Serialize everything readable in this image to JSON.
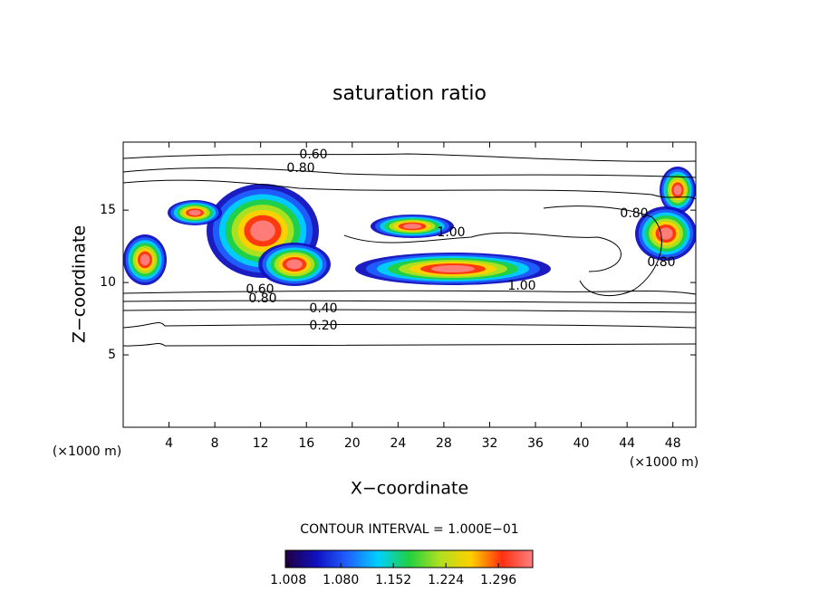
{
  "chart_data": {
    "type": "contour",
    "title": "saturation ratio",
    "x_label": "X−coordinate",
    "y_label": "Z−coordinate",
    "unit_labels": [
      "(×1000 m)",
      "(×1000 m)"
    ],
    "xlim": [
      0,
      50
    ],
    "xticks": [
      4,
      8,
      12,
      16,
      20,
      24,
      28,
      32,
      36,
      40,
      44,
      48
    ],
    "ylim": [
      0,
      19.7
    ],
    "yticks": [
      5,
      10,
      15
    ],
    "contour_interval_text": "CONTOUR INTERVAL = 1.000E−01",
    "contour_labels": [
      {
        "value": 0.6,
        "label": "0.60"
      },
      {
        "value": 0.8,
        "label": "0.80"
      },
      {
        "value": 1.0,
        "label": "1.00"
      },
      {
        "value": 1.0,
        "label": "1.00"
      },
      {
        "value": 0.8,
        "label": "0.80"
      },
      {
        "value": 0.6,
        "label": "0.60"
      },
      {
        "value": 0.4,
        "label": "0.40"
      },
      {
        "value": 0.2,
        "label": "0.20"
      },
      {
        "value": 0.8,
        "label": "0.80"
      },
      {
        "value": 0.8,
        "label": "0.80"
      }
    ],
    "colorbar": {
      "clim": [
        1.004,
        1.343
      ],
      "ticks": [
        {
          "value": 1.008,
          "label": "1.008"
        },
        {
          "value": 1.08,
          "label": "1.080"
        },
        {
          "value": 1.152,
          "label": "1.152"
        },
        {
          "value": 1.224,
          "label": "1.224"
        },
        {
          "value": 1.296,
          "label": "1.296"
        }
      ],
      "colors": [
        "#200040",
        "#1010c0",
        "#2060ff",
        "#00d0ff",
        "#20d040",
        "#b0e020",
        "#ffd000",
        "#ff3010",
        "#ff8080"
      ]
    }
  }
}
